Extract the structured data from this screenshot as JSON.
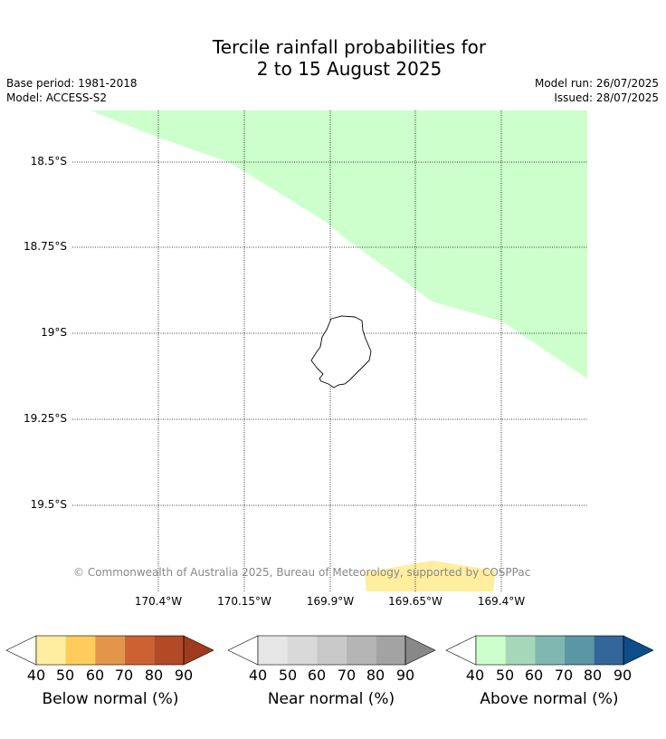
{
  "title": {
    "line1": "Tercile rainfall probabilities for",
    "line2": "2 to 15 August 2025"
  },
  "meta": {
    "base_period": "Base period: 1981-2018",
    "model": "Model: ACCESS-S2",
    "model_run": "Model run: 26/07/2025",
    "issued": "Issued: 28/07/2025"
  },
  "map": {
    "lat_labels": [
      "18.5°S",
      "18.75°S",
      "19°S",
      "19.25°S",
      "19.5°S"
    ],
    "lon_labels": [
      "170.4°W",
      "170.15°W",
      "169.9°W",
      "169.65°W",
      "169.4°W"
    ],
    "credit": "© Commonwealth of Australia 2025, Bureau of Meteorology, supported by COSPPac",
    "above_normal_fill": "#ccffcc",
    "below_normal_fill": "#ffeda0"
  },
  "colorbars": [
    {
      "title": "Below normal (%)",
      "ticks": [
        "40",
        "50",
        "60",
        "70",
        "80",
        "90"
      ],
      "colors": [
        "#ffffff",
        "#ffeda0",
        "#fecc5c",
        "#e3954a",
        "#cc6232",
        "#b34a26",
        "#a03a1c"
      ]
    },
    {
      "title": "Near normal (%)",
      "ticks": [
        "40",
        "50",
        "60",
        "70",
        "80",
        "90"
      ],
      "colors": [
        "#ffffff",
        "#e6e6e6",
        "#d9d9d9",
        "#c8c8c8",
        "#b5b5b5",
        "#a3a3a3",
        "#888888"
      ]
    },
    {
      "title": "Above normal (%)",
      "ticks": [
        "40",
        "50",
        "60",
        "70",
        "80",
        "90"
      ],
      "colors": [
        "#ffffff",
        "#ccffcc",
        "#a6d7b8",
        "#80b7b0",
        "#5b96a4",
        "#336699",
        "#0d4d8a"
      ]
    }
  ]
}
